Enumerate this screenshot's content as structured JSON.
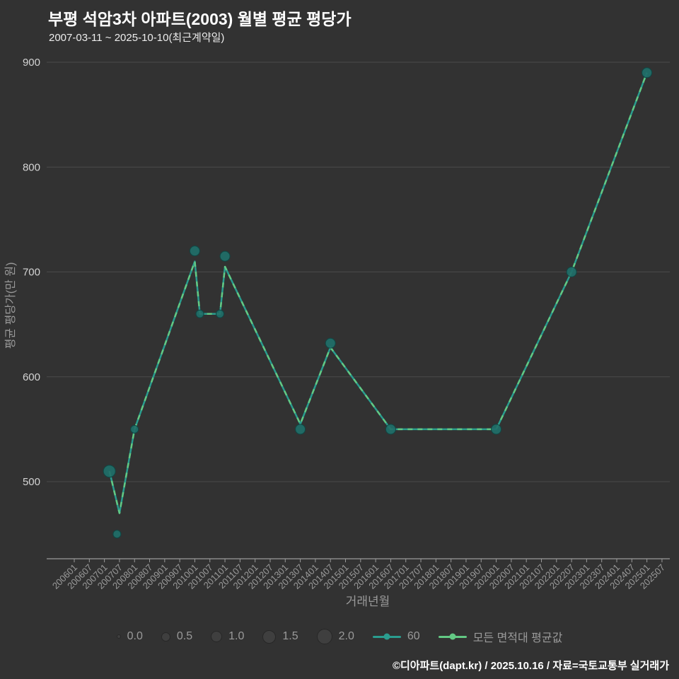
{
  "page": {
    "title": "부평 석암3차 아파트(2003) 월별 평균 평당가",
    "subtitle": "2007-03-11 ~ 2025-10-10(최근계약일)",
    "footer": "©디아파트(dapt.kr) / 2025.10.16 / 자료=국토교통부 실거래가"
  },
  "chart_data": {
    "type": "line+scatter",
    "title": "부평 석암3차 아파트(2003) 월별 평균 평당가",
    "subtitle": "2007-03-11 ~ 2025-10-10(최근계약일)",
    "xlabel": "거래년월",
    "ylabel": "평균 평당가(만 원)",
    "ylim": [
      440,
      910
    ],
    "yticks": [
      500,
      600,
      700,
      800,
      900
    ],
    "grid": "horizontal",
    "legend_position": "bottom",
    "xticks": [
      "200601",
      "200607",
      "200701",
      "200707",
      "200801",
      "200807",
      "200901",
      "200907",
      "201001",
      "201007",
      "201101",
      "201107",
      "201201",
      "201207",
      "201301",
      "201307",
      "201401",
      "201407",
      "201501",
      "201507",
      "201601",
      "201607",
      "201701",
      "201707",
      "201801",
      "201807",
      "201901",
      "201907",
      "202001",
      "202007",
      "202101",
      "202107",
      "202201",
      "202207",
      "202301",
      "202307",
      "202401",
      "202407",
      "202501",
      "202507"
    ],
    "line_points": [
      {
        "x": "200703",
        "y": 510
      },
      {
        "x": "200707",
        "y": 470
      },
      {
        "x": "200801",
        "y": 550
      },
      {
        "x": "201001",
        "y": 710
      },
      {
        "x": "201003",
        "y": 660
      },
      {
        "x": "201011",
        "y": 660
      },
      {
        "x": "201101",
        "y": 705
      },
      {
        "x": "201307",
        "y": 555
      },
      {
        "x": "201407",
        "y": 628
      },
      {
        "x": "201607",
        "y": 550
      },
      {
        "x": "202001",
        "y": 550
      },
      {
        "x": "202207",
        "y": 700
      },
      {
        "x": "202501",
        "y": 890
      }
    ],
    "lines": [
      {
        "name": "60",
        "color": "#2a9d8f",
        "dash": ""
      },
      {
        "name": "모든 면적대 평균값",
        "color": "#63c984",
        "dash": "7 7"
      }
    ],
    "scatter": {
      "series": "60",
      "marker_fill": "#1f6f69",
      "marker_stroke": "#0f4744",
      "points": [
        {
          "x": "200703",
          "y": 510,
          "size": 1.5
        },
        {
          "x": "200706",
          "y": 450,
          "size": 0.5
        },
        {
          "x": "200801",
          "y": 550,
          "size": 0.5
        },
        {
          "x": "201001",
          "y": 720,
          "size": 1.0
        },
        {
          "x": "201003",
          "y": 660,
          "size": 0.5
        },
        {
          "x": "201011",
          "y": 660,
          "size": 0.5
        },
        {
          "x": "201101",
          "y": 715,
          "size": 1.0
        },
        {
          "x": "201307",
          "y": 550,
          "size": 1.0
        },
        {
          "x": "201407",
          "y": 632,
          "size": 1.0
        },
        {
          "x": "201607",
          "y": 550,
          "size": 1.0
        },
        {
          "x": "202001",
          "y": 550,
          "size": 1.0
        },
        {
          "x": "202207",
          "y": 700,
          "size": 1.0
        },
        {
          "x": "202501",
          "y": 890,
          "size": 1.0
        }
      ]
    },
    "legend": {
      "size_labels": [
        "0.0",
        "0.5",
        "1.0",
        "1.5",
        "2.0"
      ],
      "size_values": [
        0,
        0.5,
        1.0,
        1.5,
        2.0
      ],
      "series": [
        {
          "label": "60",
          "color": "#2a9d8f"
        },
        {
          "label": "모든 면적대 평균값",
          "color": "#63c984"
        }
      ]
    },
    "colors": {
      "background": "#323232",
      "grid": "#4a4a4a",
      "axis": "#9a9a9a",
      "tick_label": "#9a9a9a",
      "ytick_label": "#d4d4d4",
      "title": "#ffffff",
      "footer": "#ffffff",
      "teal": "#2a9d8f",
      "green": "#63c984",
      "marker_fill": "#1f6f69",
      "marker_stroke": "#0f4744"
    }
  }
}
